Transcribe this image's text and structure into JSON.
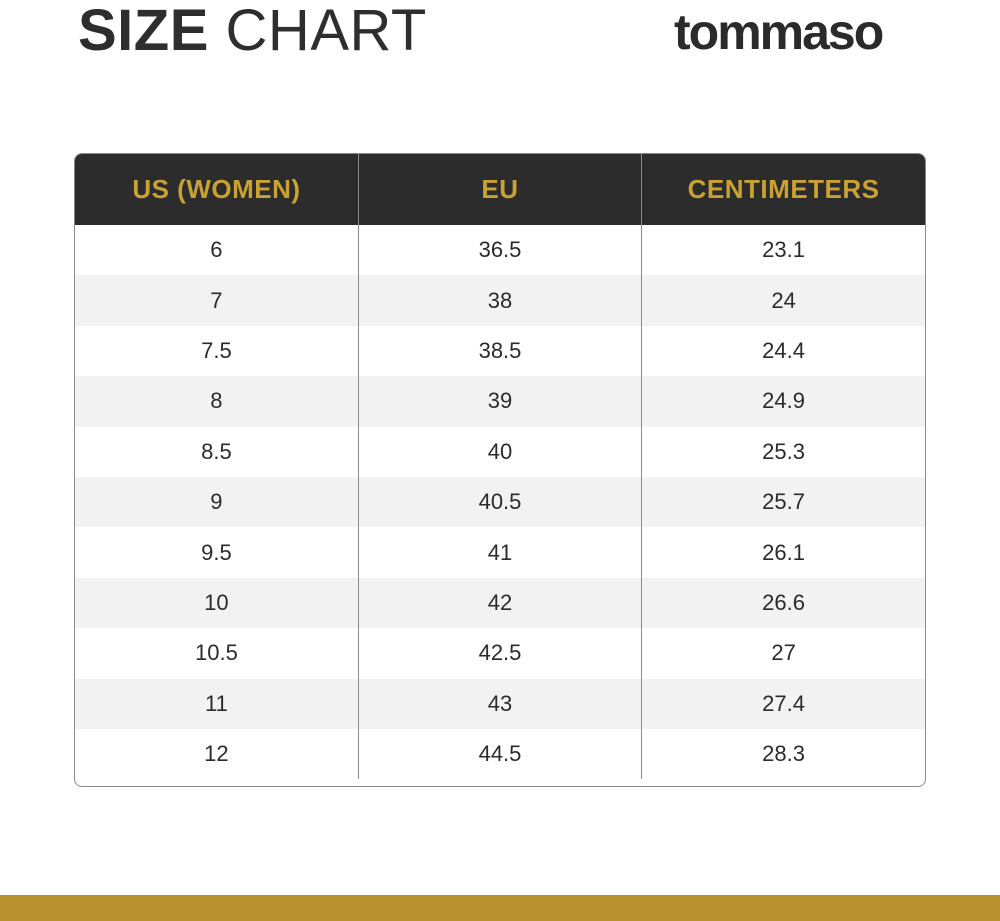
{
  "header": {
    "title_bold": "SIZE",
    "title_light": "CHART",
    "brand": "tommaso"
  },
  "table": {
    "columns": [
      "US (WOMEN)",
      "EU",
      "CENTIMETERS"
    ],
    "rows": [
      [
        "6",
        "36.5",
        "23.1"
      ],
      [
        "7",
        "38",
        "24"
      ],
      [
        "7.5",
        "38.5",
        "24.4"
      ],
      [
        "8",
        "39",
        "24.9"
      ],
      [
        "8.5",
        "40",
        "25.3"
      ],
      [
        "9",
        "40.5",
        "25.7"
      ],
      [
        "9.5",
        "41",
        "26.1"
      ],
      [
        "10",
        "42",
        "26.6"
      ],
      [
        "10.5",
        "42.5",
        "27"
      ],
      [
        "11",
        "43",
        "27.4"
      ],
      [
        "12",
        "44.5",
        "28.3"
      ]
    ]
  },
  "colors": {
    "header_bg": "#2c2c2c",
    "header_text": "#c9a232",
    "footer_bar": "#b9922f",
    "row_alt": "#f2f2f2"
  }
}
